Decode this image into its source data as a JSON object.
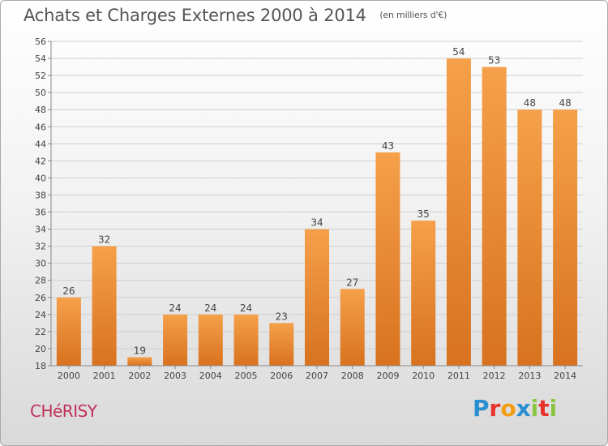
{
  "page": {
    "title": "Achats et Charges Externes 2000 à 2014",
    "unit_note": "(en milliers d'€)",
    "city": "CHéRISY",
    "logo": {
      "text": "Proxiti",
      "letters": [
        {
          "ch": "P",
          "color": "#2a8fd0"
        },
        {
          "ch": "r",
          "color": "#e8322c"
        },
        {
          "ch": "o",
          "color": "#f39c12"
        },
        {
          "ch": "x",
          "color": "#2a8fd0"
        },
        {
          "ch": "i",
          "color": "#8bc53f"
        },
        {
          "ch": "t",
          "color": "#e8322c"
        },
        {
          "ch": "i",
          "color": "#8bc53f"
        }
      ]
    }
  },
  "chart_data": {
    "type": "bar",
    "title": "Achats et Charges Externes 2000 à 2014",
    "categories": [
      "2000",
      "2001",
      "2002",
      "2003",
      "2004",
      "2005",
      "2006",
      "2007",
      "2008",
      "2009",
      "2010",
      "2011",
      "2012",
      "2013",
      "2014"
    ],
    "values": [
      26,
      32,
      19,
      24,
      24,
      24,
      23,
      34,
      27,
      43,
      35,
      54,
      53,
      48,
      48
    ],
    "ylim": [
      18,
      56
    ],
    "yticks": [
      18,
      20,
      22,
      24,
      26,
      28,
      30,
      32,
      34,
      36,
      38,
      40,
      42,
      44,
      46,
      48,
      50,
      52,
      54,
      56
    ],
    "grid": true,
    "bar_color_top": "#f5a04a",
    "bar_color_bottom": "#d8721f"
  }
}
